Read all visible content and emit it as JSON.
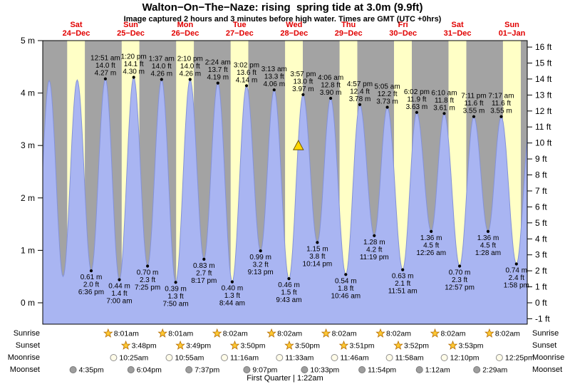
{
  "header": {
    "title": "Walton−On−The−Naze: rising  spring tide at 3.0m (9.9ft)",
    "subtitle": "Image captured 2 hours and 3 minutes before high water. Times are GMT (UTC +0hrs)"
  },
  "colors": {
    "night_bg": "#a3a3a3",
    "day_bg": "#ffffc6",
    "tide_fill": "#a9b5f2",
    "tide_line": "#8492d8",
    "day_label": "#e10000",
    "marker_fill": "#ffd700",
    "star": "#ffc933",
    "star_edge": "#b36b00",
    "moon_light": "#fffbe8",
    "moon_dark": "#9e9e9e"
  },
  "chart_data": {
    "type": "area",
    "title": "Walton−On−The−Naze: rising  spring tide at 3.0m (9.9ft)",
    "time_unit": "hours since 00:00 Sat 24−Dec (GMT)",
    "ylim_m": [
      -0.41,
      5
    ],
    "y_left_ticks_m": [
      0,
      1,
      2,
      3,
      4,
      5
    ],
    "y_right_ticks_ft": [
      -1,
      0,
      1,
      2,
      3,
      4,
      5,
      6,
      7,
      8,
      9,
      10,
      11,
      12,
      13,
      14,
      15,
      16
    ],
    "days": [
      {
        "day": "Sat",
        "date": "24−Dec"
      },
      {
        "day": "Sun",
        "date": "25−Dec"
      },
      {
        "day": "Mon",
        "date": "26−Dec"
      },
      {
        "day": "Tue",
        "date": "27−Dec"
      },
      {
        "day": "Wed",
        "date": "28−Dec"
      },
      {
        "day": "Thu",
        "date": "29−Dec"
      },
      {
        "day": "Fri",
        "date": "30−Dec"
      },
      {
        "day": "Sat",
        "date": "31−Dec"
      },
      {
        "day": "Sun",
        "date": "01−Jan"
      }
    ],
    "daylight": [
      [
        8.02,
        15.78
      ],
      [
        8.02,
        15.8
      ],
      [
        8.02,
        15.82
      ],
      [
        8.03,
        15.83
      ],
      [
        8.03,
        15.83
      ],
      [
        8.03,
        15.85
      ],
      [
        8.03,
        15.87
      ],
      [
        8.03,
        15.88
      ],
      [
        8.03,
        15.9
      ]
    ],
    "marker": {
      "t": 109.9,
      "level_m": 3.0,
      "level_ft": 9.9
    },
    "extremes": [
      {
        "t": -5.9,
        "h": 0.6,
        "type": "low"
      },
      {
        "t": 0.08,
        "h": 4.24,
        "type": "high"
      },
      {
        "t": 6.2,
        "h": 0.5,
        "type": "low"
      },
      {
        "t": 12.43,
        "h": 4.25,
        "type": "high"
      },
      {
        "t": 18.6,
        "h": 0.61,
        "type": "low",
        "labels": [
          "0.61 m",
          "2.0 ft",
          "6:36 pm"
        ]
      },
      {
        "t": 24.85,
        "h": 4.27,
        "type": "high",
        "labels": [
          "12:51 am",
          "14.0 ft",
          "4.27 m"
        ]
      },
      {
        "t": 31.0,
        "h": 0.44,
        "type": "low",
        "labels": [
          "0.44 m",
          "1.4 ft",
          "7:00 am"
        ]
      },
      {
        "t": 37.33,
        "h": 4.3,
        "type": "high",
        "labels": [
          "1:20 pm",
          "14.1 ft",
          "4.30 m"
        ]
      },
      {
        "t": 43.42,
        "h": 0.7,
        "type": "low",
        "labels": [
          "0.70 m",
          "2.3 ft",
          "7:25 pm"
        ]
      },
      {
        "t": 49.62,
        "h": 4.26,
        "type": "high",
        "labels": [
          "1:37 am",
          "14.0 ft",
          "4.26 m"
        ]
      },
      {
        "t": 55.83,
        "h": 0.39,
        "type": "low",
        "labels": [
          "0.39 m",
          "1.3 ft",
          "7:50 am"
        ]
      },
      {
        "t": 62.17,
        "h": 4.26,
        "type": "high",
        "labels": [
          "2:10 pm",
          "14.0 ft",
          "4.26 m"
        ]
      },
      {
        "t": 68.28,
        "h": 0.83,
        "type": "low",
        "labels": [
          "0.83 m",
          "2.7 ft",
          "8:17 pm"
        ]
      },
      {
        "t": 74.4,
        "h": 4.19,
        "type": "high",
        "labels": [
          "2:24 am",
          "13.7 ft",
          "4.19 m"
        ]
      },
      {
        "t": 80.73,
        "h": 0.4,
        "type": "low",
        "labels": [
          "0.40 m",
          "1.3 ft",
          "8:44 am"
        ]
      },
      {
        "t": 87.03,
        "h": 4.14,
        "type": "high",
        "labels": [
          "3:02 pm",
          "13.6 ft",
          "4.14 m"
        ]
      },
      {
        "t": 93.22,
        "h": 0.99,
        "type": "low",
        "labels": [
          "0.99 m",
          "3.2 ft",
          "9:13 pm"
        ]
      },
      {
        "t": 99.22,
        "h": 4.06,
        "type": "high",
        "labels": [
          "3:13 am",
          "13.3 ft",
          "4.06 m"
        ]
      },
      {
        "t": 105.72,
        "h": 0.46,
        "type": "low",
        "labels": [
          "0.46 m",
          "1.5 ft",
          "9:43 am"
        ]
      },
      {
        "t": 111.95,
        "h": 3.97,
        "type": "high",
        "labels": [
          "3:57 pm",
          "13.0 ft",
          "3.97 m"
        ]
      },
      {
        "t": 118.23,
        "h": 1.15,
        "type": "low",
        "labels": [
          "1.15 m",
          "3.8 ft",
          "10:14 pm"
        ]
      },
      {
        "t": 124.1,
        "h": 3.9,
        "type": "high",
        "labels": [
          "4:06 am",
          "12.8 ft",
          "3.90 m"
        ]
      },
      {
        "t": 130.77,
        "h": 0.54,
        "type": "low",
        "labels": [
          "0.54 m",
          "1.8 ft",
          "10:46 am"
        ]
      },
      {
        "t": 136.95,
        "h": 3.78,
        "type": "high",
        "labels": [
          "4:57 pm",
          "12.4 ft",
          "3.78 m"
        ]
      },
      {
        "t": 143.32,
        "h": 1.28,
        "type": "low",
        "labels": [
          "1.28 m",
          "4.2 ft",
          "11:19 pm"
        ]
      },
      {
        "t": 149.08,
        "h": 3.73,
        "type": "high",
        "labels": [
          "5:05 am",
          "12.2 ft",
          "3.73 m"
        ]
      },
      {
        "t": 155.85,
        "h": 0.63,
        "type": "low",
        "labels": [
          "0.63 m",
          "2.1 ft",
          "11:51 am"
        ]
      },
      {
        "t": 162.03,
        "h": 3.63,
        "type": "high",
        "labels": [
          "6:02 pm",
          "11.9 ft",
          "3.63 m"
        ]
      },
      {
        "t": 168.43,
        "h": 1.36,
        "type": "low",
        "labels": [
          "1.36 m",
          "4.5 ft",
          "12:26 am"
        ]
      },
      {
        "t": 174.17,
        "h": 3.61,
        "type": "high",
        "labels": [
          "6:10 am",
          "11.8 ft",
          "3.61 m"
        ]
      },
      {
        "t": 180.95,
        "h": 0.7,
        "type": "low",
        "labels": [
          "0.70 m",
          "2.3 ft",
          "12:57 pm"
        ]
      },
      {
        "t": 187.18,
        "h": 3.55,
        "type": "high",
        "labels": [
          "7:11 pm",
          "11.6 ft",
          "3.55 m"
        ]
      },
      {
        "t": 193.47,
        "h": 1.36,
        "type": "low",
        "labels": [
          "1.36 m",
          "4.5 ft",
          "1:28 am"
        ]
      },
      {
        "t": 199.28,
        "h": 3.55,
        "type": "high",
        "labels": [
          "7:17 am",
          "11.6 ft",
          "3.55 m"
        ]
      },
      {
        "t": 205.97,
        "h": 0.74,
        "type": "low",
        "labels": [
          "0.74 m",
          "2.4 ft",
          "1:58 pm"
        ]
      },
      {
        "t": 212.2,
        "h": 3.5,
        "type": "high"
      }
    ]
  },
  "astro": {
    "row_labels": [
      "Sunrise",
      "Sunset",
      "Moonrise",
      "Moonset"
    ],
    "sunrise": [
      {
        "t": 32.02,
        "time": "8:01am"
      },
      {
        "t": 56.02,
        "time": "8:01am"
      },
      {
        "t": 80.03,
        "time": "8:02am"
      },
      {
        "t": 104.03,
        "time": "8:02am"
      },
      {
        "t": 128.03,
        "time": "8:02am"
      },
      {
        "t": 152.03,
        "time": "8:02am"
      },
      {
        "t": 176.03,
        "time": "8:02am"
      },
      {
        "t": 200.03,
        "time": "8:02am"
      }
    ],
    "sunset": [
      {
        "t": 39.8,
        "time": "3:48pm"
      },
      {
        "t": 63.82,
        "time": "3:49pm"
      },
      {
        "t": 87.83,
        "time": "3:50pm"
      },
      {
        "t": 111.83,
        "time": "3:50pm"
      },
      {
        "t": 135.85,
        "time": "3:51pm"
      },
      {
        "t": 159.87,
        "time": "3:52pm"
      },
      {
        "t": 183.88,
        "time": "3:53pm"
      }
    ],
    "moonrise": [
      {
        "t": 34.42,
        "time": "10:25am"
      },
      {
        "t": 58.92,
        "time": "10:55am"
      },
      {
        "t": 83.27,
        "time": "11:16am"
      },
      {
        "t": 107.55,
        "time": "11:33am"
      },
      {
        "t": 131.77,
        "time": "11:46am"
      },
      {
        "t": 155.97,
        "time": "11:58am"
      },
      {
        "t": 180.17,
        "time": "12:10pm"
      },
      {
        "t": 204.42,
        "time": "12:25pm"
      }
    ],
    "moonset": [
      {
        "t": 16.58,
        "time": "4:35pm"
      },
      {
        "t": 42.07,
        "time": "6:04pm"
      },
      {
        "t": 67.62,
        "time": "7:37pm"
      },
      {
        "t": 93.12,
        "time": "9:07pm"
      },
      {
        "t": 118.55,
        "time": "10:33pm"
      },
      {
        "t": 143.9,
        "time": "11:54pm"
      },
      {
        "t": 169.2,
        "time": "1:12am"
      },
      {
        "t": 194.48,
        "time": "2:29am"
      }
    ],
    "caption": "First Quarter | 1:22am"
  }
}
